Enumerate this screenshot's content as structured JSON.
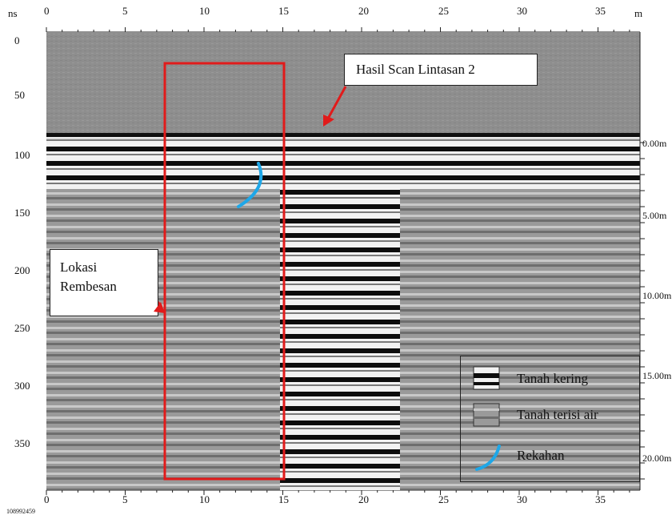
{
  "axes": {
    "left_unit": "ns",
    "top_unit": "m",
    "ns_ticks": [
      "0",
      "50",
      "100",
      "150",
      "200",
      "250",
      "300",
      "350"
    ],
    "m_ticks": [
      "0",
      "5",
      "10",
      "15",
      "20",
      "25",
      "30",
      "35"
    ],
    "depth_ticks": [
      "0.00m",
      "5.00m",
      "10.00m",
      "15.00m",
      "20.00m"
    ],
    "file_id": "108992459"
  },
  "annotations": {
    "scan_title": "Hasil Scan Lintasan 2",
    "seepage_label_line1": "Lokasi",
    "seepage_label_line2": "Rembesan"
  },
  "legend": {
    "items": [
      {
        "label": "Tanah kering",
        "icon": "dry-soil-swatch"
      },
      {
        "label": "Tanah terisi air",
        "icon": "wet-soil-swatch"
      },
      {
        "label": "Rekahan",
        "icon": "crack-arc"
      }
    ]
  },
  "colors": {
    "highlight_box": "#e11b1b",
    "arrow": "#e11b1b",
    "crack": "#1ea7e8"
  }
}
